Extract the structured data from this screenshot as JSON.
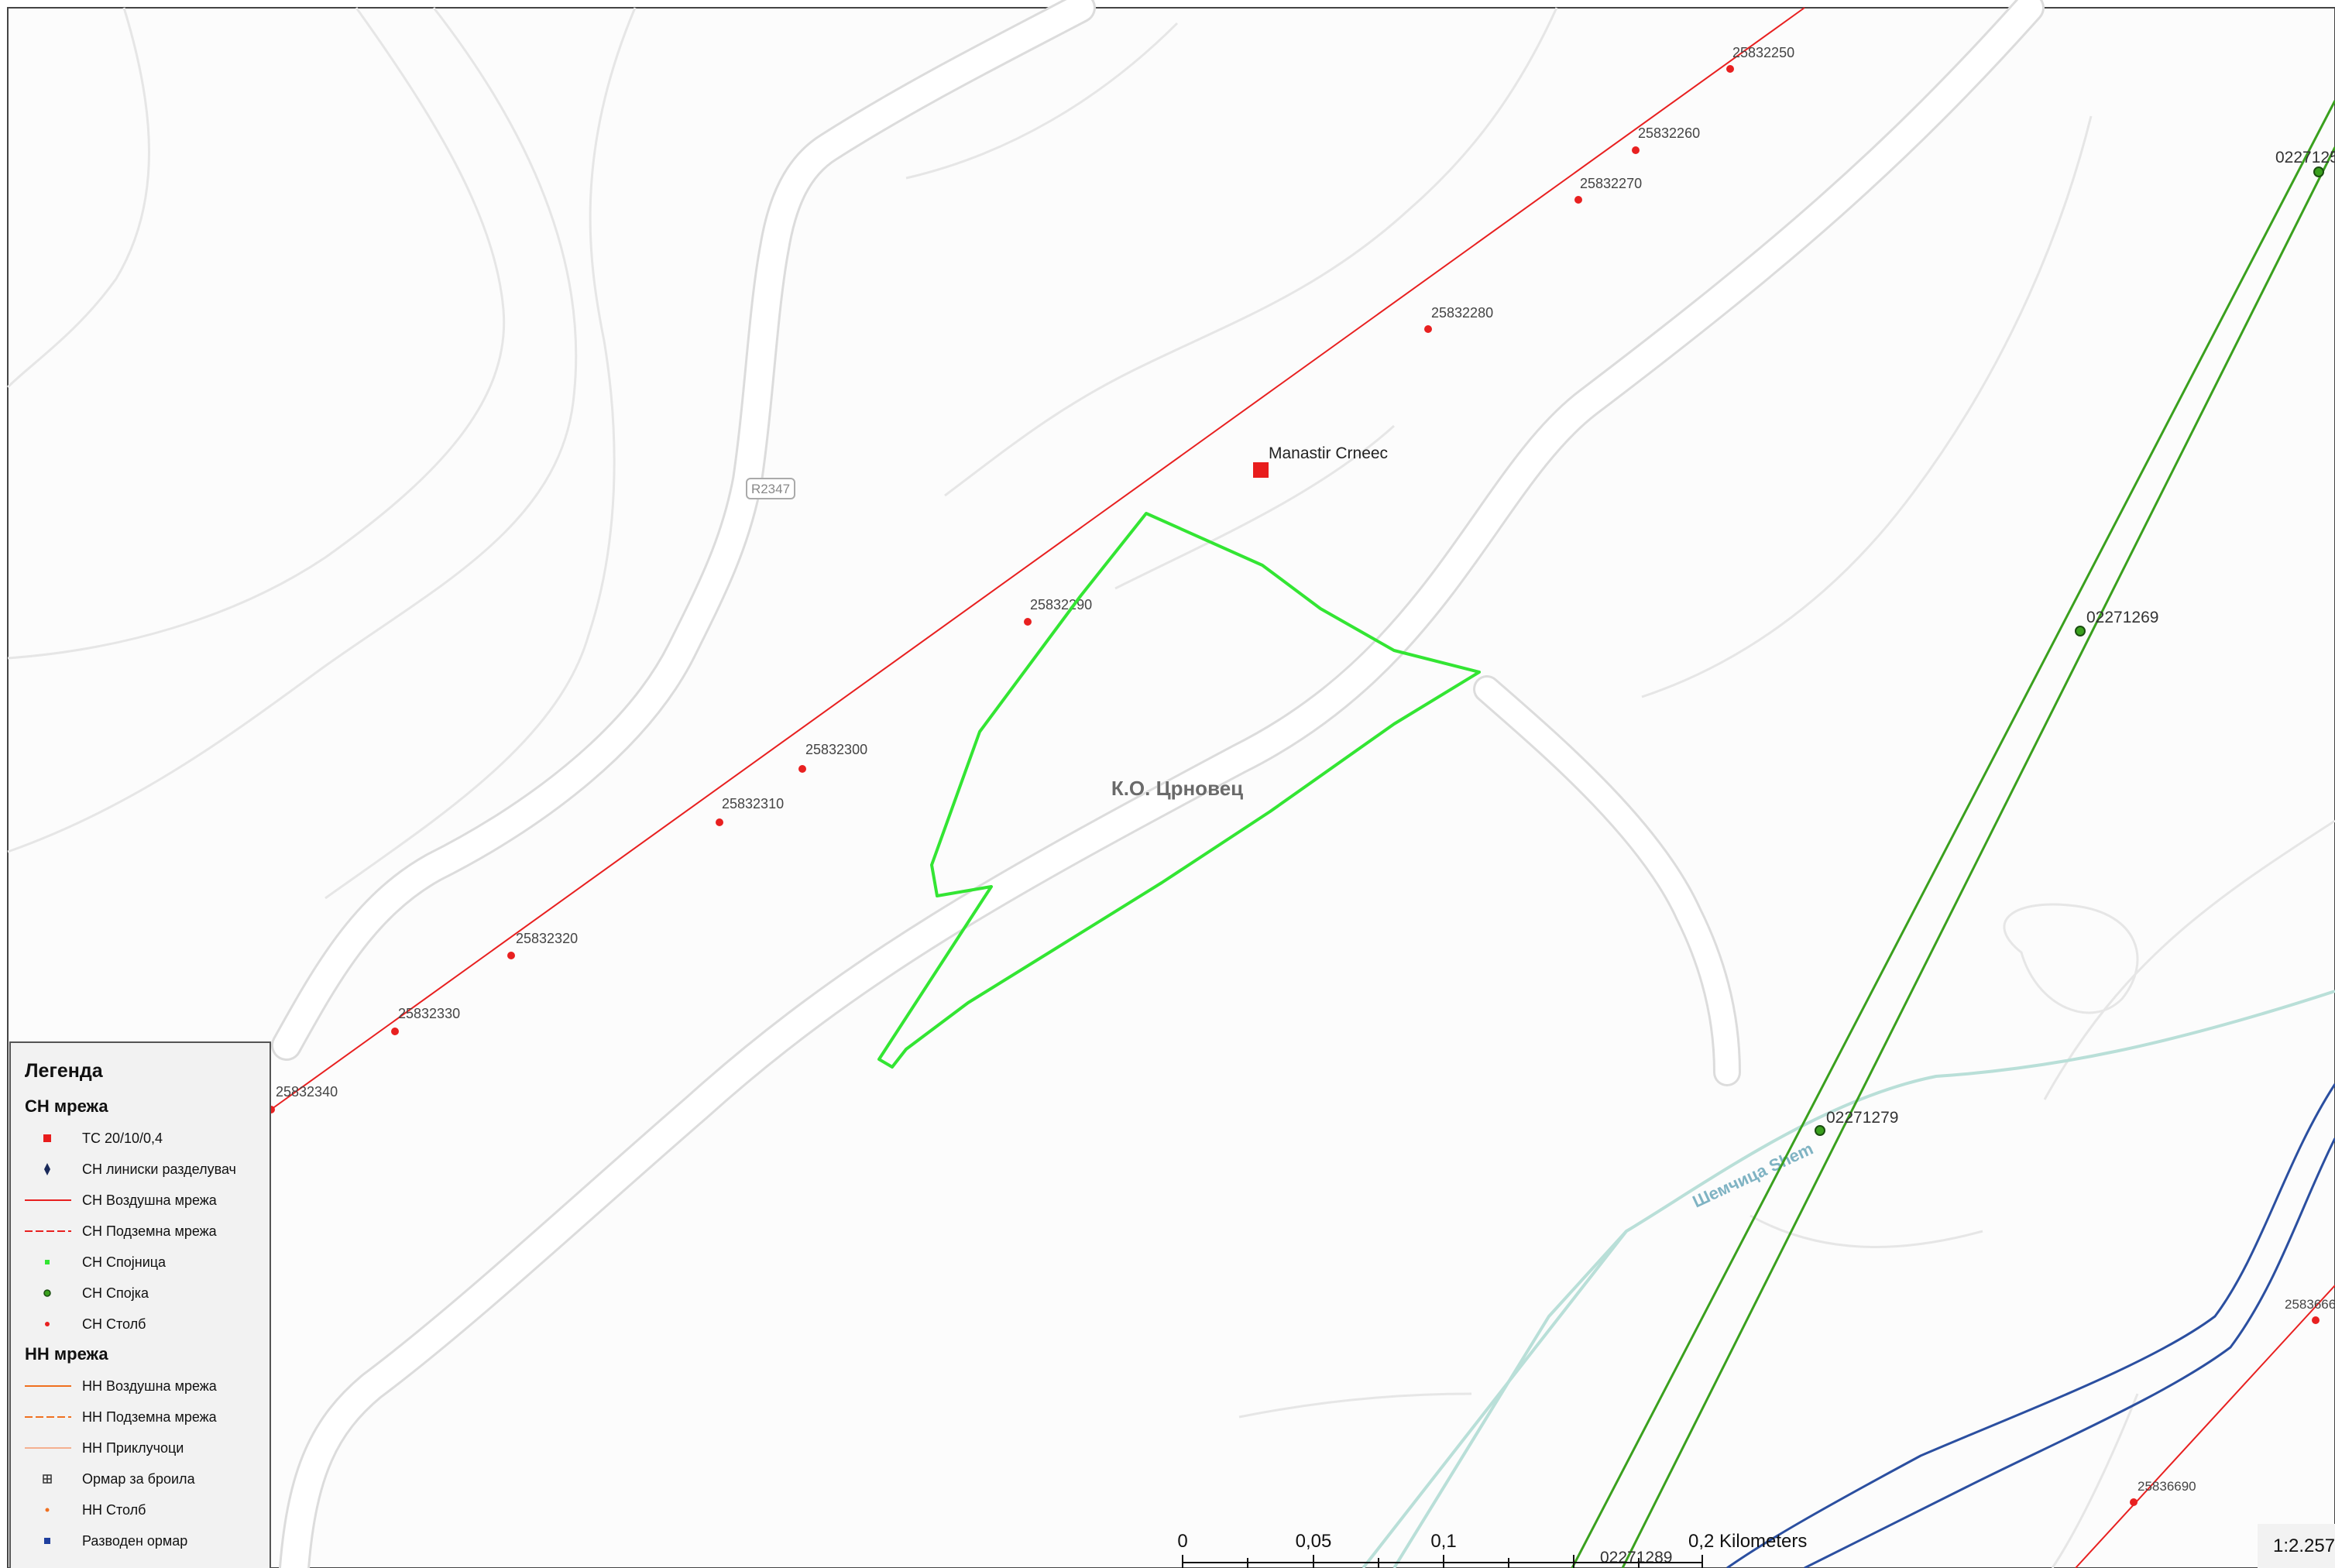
{
  "map": {
    "road_label": "R2347",
    "area_label": "К.О. Црновец",
    "substation_label": "Manastir Crneec",
    "river_label": "Шемчица Shem",
    "pole_labels": [
      "25832250",
      "25832260",
      "25832270",
      "25832280",
      "25832290",
      "25832300",
      "25832310",
      "25832320",
      "25832330",
      "25832340"
    ],
    "junction_labels": [
      "0227125",
      "02271269",
      "02271279",
      "02271289"
    ],
    "lower_right_labels": [
      "2583666",
      "25836690"
    ]
  },
  "legend": {
    "title": "Легенда",
    "sn_section": "СН мрежа",
    "sn_items": [
      "ТС 20/10/0,4",
      "СН линиски разделувач",
      "СН Воздушна мрежа",
      "СН Подземна мрежа",
      "СН Спојница",
      "СН Спојка",
      "СН Столб"
    ],
    "nn_section": "НН мрежа",
    "nn_items": [
      "НН Воздушна мрежа",
      "НН Подземна мрежа",
      "НН Приклучоци",
      "Ормар за броила",
      "НН Столб",
      "Разводен ормар"
    ]
  },
  "scale_bar": {
    "ticks": [
      "0",
      "0,05",
      "0,1",
      "0,2 Kilometers"
    ],
    "ratio": "1:2.257"
  },
  "colors": {
    "sn_line": "#e82020",
    "boundary": "#33e533",
    "road_casing": "#d9d9d9",
    "power_corridor": "#3aa01e",
    "river": "#b9dfd8",
    "nn_line": "#f07020",
    "blue_line": "#2b4fa0"
  }
}
